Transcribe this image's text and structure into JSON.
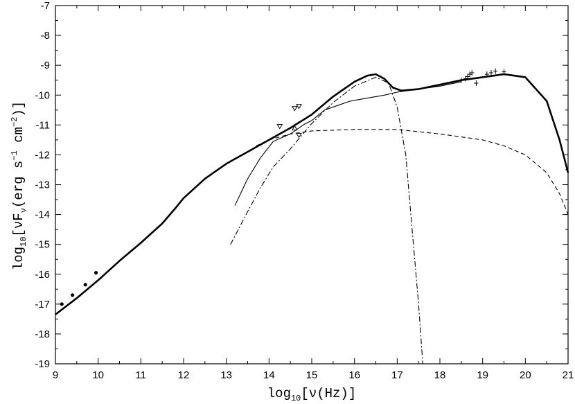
{
  "chart_data": {
    "type": "line",
    "title": "",
    "xlabel": {
      "prefix": "log",
      "sub": "10",
      "text": "[ν(Hz)]"
    },
    "ylabel": {
      "prefix": "log",
      "sub": "10",
      "mid": "[νF",
      "nu_sub": "ν",
      "units": "(erg s",
      "exp1": "−1",
      "cm": " cm",
      "exp2": "−2",
      "close": ")]"
    },
    "xlim": [
      9,
      21
    ],
    "ylim": [
      -19,
      -7
    ],
    "x_ticks": [
      "9",
      "10",
      "11",
      "12",
      "13",
      "14",
      "15",
      "16",
      "17",
      "18",
      "19",
      "20",
      "21"
    ],
    "y_ticks": [
      "-19",
      "-18",
      "-17",
      "-16",
      "-15",
      "-14",
      "-13",
      "-12",
      "-11",
      "-10",
      "-9",
      "-8",
      "-7"
    ],
    "grid": false,
    "series": [
      {
        "style": "thick-solid",
        "points": [
          [
            9.0,
            -17.35
          ],
          [
            9.5,
            -16.8
          ],
          [
            10.0,
            -16.2
          ],
          [
            10.5,
            -15.55
          ],
          [
            11.0,
            -14.95
          ],
          [
            11.5,
            -14.3
          ],
          [
            11.8,
            -13.8
          ],
          [
            12.0,
            -13.45
          ],
          [
            12.5,
            -12.8
          ],
          [
            13.0,
            -12.3
          ],
          [
            13.5,
            -11.9
          ],
          [
            14.0,
            -11.5
          ],
          [
            14.5,
            -11.1
          ],
          [
            15.0,
            -10.65
          ],
          [
            15.5,
            -10.05
          ],
          [
            16.0,
            -9.55
          ],
          [
            16.3,
            -9.35
          ],
          [
            16.5,
            -9.3
          ],
          [
            16.7,
            -9.45
          ],
          [
            16.9,
            -9.75
          ],
          [
            17.1,
            -9.85
          ],
          [
            17.5,
            -9.8
          ],
          [
            18.0,
            -9.65
          ],
          [
            18.5,
            -9.5
          ],
          [
            19.0,
            -9.4
          ],
          [
            19.5,
            -9.3
          ],
          [
            20.0,
            -9.4
          ],
          [
            20.5,
            -10.2
          ],
          [
            20.8,
            -11.5
          ],
          [
            21.0,
            -12.6
          ]
        ]
      },
      {
        "style": "thin-solid",
        "points": [
          [
            13.2,
            -13.7
          ],
          [
            13.5,
            -12.8
          ],
          [
            13.8,
            -12.1
          ],
          [
            14.1,
            -11.55
          ],
          [
            14.5,
            -11.3
          ],
          [
            14.8,
            -11.0
          ],
          [
            15.0,
            -10.85
          ],
          [
            15.3,
            -10.5
          ],
          [
            15.6,
            -10.35
          ],
          [
            15.9,
            -10.2
          ],
          [
            16.3,
            -10.1
          ],
          [
            16.7,
            -10.0
          ],
          [
            17.0,
            -9.9
          ],
          [
            17.5,
            -9.8
          ],
          [
            18.0,
            -9.7
          ],
          [
            18.5,
            -9.55
          ]
        ]
      },
      {
        "style": "dash-dot",
        "points": [
          [
            13.1,
            -15.0
          ],
          [
            13.5,
            -13.9
          ],
          [
            13.8,
            -13.1
          ],
          [
            14.1,
            -12.4
          ],
          [
            14.5,
            -11.8
          ],
          [
            15.0,
            -10.95
          ],
          [
            15.5,
            -10.25
          ],
          [
            16.0,
            -9.7
          ],
          [
            16.5,
            -9.4
          ],
          [
            16.8,
            -9.6
          ],
          [
            17.0,
            -10.4
          ],
          [
            17.2,
            -12.0
          ],
          [
            17.35,
            -14.5
          ],
          [
            17.5,
            -17.0
          ],
          [
            17.6,
            -19.0
          ]
        ]
      },
      {
        "style": "dashed",
        "points": [
          [
            13.7,
            -11.7
          ],
          [
            14.0,
            -11.5
          ],
          [
            14.5,
            -11.3
          ],
          [
            15.0,
            -11.2
          ],
          [
            16.0,
            -11.15
          ],
          [
            17.0,
            -11.15
          ],
          [
            18.0,
            -11.3
          ],
          [
            19.0,
            -11.5
          ],
          [
            19.5,
            -11.7
          ],
          [
            20.0,
            -12.0
          ],
          [
            20.5,
            -12.6
          ],
          [
            20.8,
            -13.3
          ],
          [
            21.0,
            -14.0
          ]
        ]
      }
    ],
    "data_points": [
      [
        9.15,
        -17.0
      ],
      [
        9.4,
        -16.7
      ],
      [
        9.7,
        -16.35
      ],
      [
        9.95,
        -15.95
      ]
    ],
    "upper_limits": [
      [
        14.25,
        -11.05
      ],
      [
        14.6,
        -10.45
      ],
      [
        14.7,
        -10.38
      ],
      [
        14.7,
        -11.35
      ]
    ],
    "lower_limits": [
      [
        14.6,
        -11.1
      ]
    ],
    "xray_points": [
      [
        18.5,
        -9.5
      ],
      [
        18.6,
        -9.45
      ],
      [
        18.65,
        -9.38
      ],
      [
        18.7,
        -9.3
      ],
      [
        18.75,
        -9.25
      ],
      [
        18.85,
        -9.6
      ],
      [
        19.1,
        -9.3
      ],
      [
        19.2,
        -9.25
      ],
      [
        19.3,
        -9.2
      ],
      [
        19.5,
        -9.22
      ]
    ]
  }
}
